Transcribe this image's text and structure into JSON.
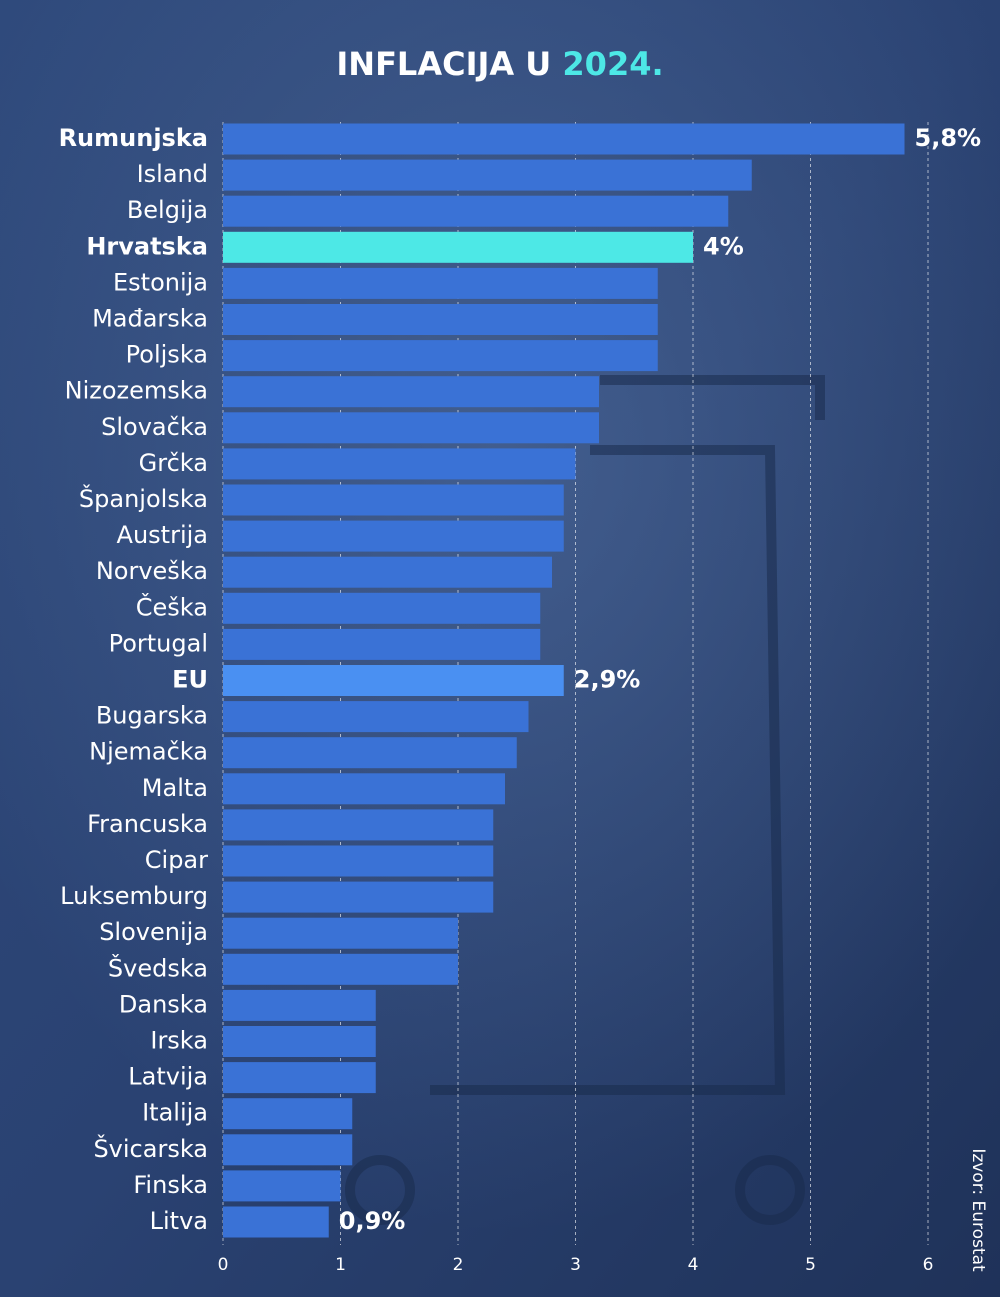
{
  "chart_data": {
    "type": "hbar",
    "title": "INFLACIJA U ",
    "title_highlight": "2024.",
    "source": "Izvor: Eurostat",
    "categories": [
      "Rumunjska",
      "Island",
      "Belgija",
      "Hrvatska",
      "Estonija",
      "Mađarska",
      "Poljska",
      "Nizozemska",
      "Slovačka",
      "Grčka",
      "Španjolska",
      "Austrija",
      "Norveška",
      "Češka",
      "Portugal",
      "EU",
      "Bugarska",
      "Njemačka",
      "Malta",
      "Francuska",
      "Cipar",
      "Luksemburg",
      "Slovenija",
      "Švedska",
      "Danska",
      "Irska",
      "Latvija",
      "Italija",
      "Švicarska",
      "Finska",
      "Litva"
    ],
    "values": [
      5.8,
      4.5,
      4.3,
      4.0,
      3.7,
      3.7,
      3.7,
      3.2,
      3.2,
      3.0,
      2.9,
      2.9,
      2.8,
      2.7,
      2.7,
      2.9,
      2.6,
      2.5,
      2.4,
      2.3,
      2.3,
      2.3,
      2.0,
      2.0,
      1.3,
      1.3,
      1.3,
      1.1,
      1.1,
      1.0,
      0.9
    ],
    "value_labels": [
      "5,8%",
      null,
      null,
      "4%",
      null,
      null,
      null,
      null,
      null,
      null,
      null,
      null,
      null,
      null,
      null,
      "2,9%",
      null,
      null,
      null,
      null,
      null,
      null,
      null,
      null,
      null,
      null,
      null,
      null,
      null,
      null,
      "0,9%"
    ],
    "colors": [
      "#3a72d6",
      "#3a72d6",
      "#3a72d6",
      "#4de8e6",
      "#3a72d6",
      "#3a72d6",
      "#3a72d6",
      "#3a72d6",
      "#3a72d6",
      "#3a72d6",
      "#3a72d6",
      "#3a72d6",
      "#3a72d6",
      "#3a72d6",
      "#3a72d6",
      "#4a90f2",
      "#3a72d6",
      "#3a72d6",
      "#3a72d6",
      "#3a72d6",
      "#3a72d6",
      "#3a72d6",
      "#3a72d6",
      "#3a72d6",
      "#3a72d6",
      "#3a72d6",
      "#3a72d6",
      "#3a72d6",
      "#3a72d6",
      "#3a72d6",
      "#3a72d6"
    ],
    "bold": [
      true,
      false,
      false,
      true,
      false,
      false,
      false,
      false,
      false,
      false,
      false,
      false,
      false,
      false,
      false,
      true,
      false,
      false,
      false,
      false,
      false,
      false,
      false,
      false,
      false,
      false,
      false,
      false,
      false,
      false,
      false
    ],
    "xlim": [
      0,
      6
    ],
    "xticks": [
      0,
      1,
      2,
      3,
      4,
      5,
      6
    ],
    "grid": true,
    "title_highlight_color": "#4de8e6"
  }
}
